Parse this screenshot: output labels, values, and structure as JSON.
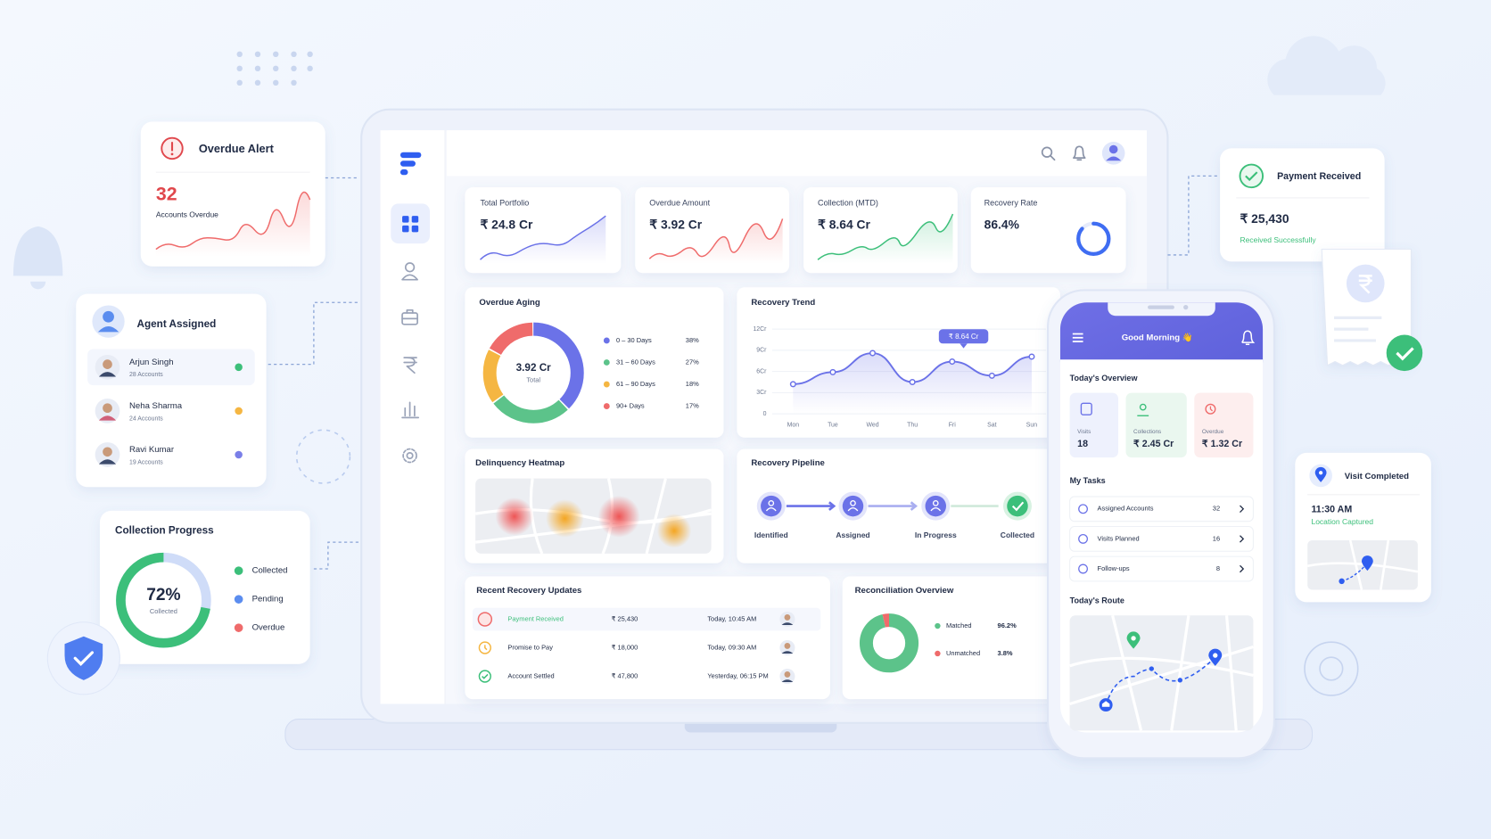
{
  "overdue_alert": {
    "title": "Overdue Alert",
    "count": "32",
    "caption": "Accounts Overdue"
  },
  "agent_assigned": {
    "title": "Agent Assigned",
    "agents": [
      {
        "name": "Arjun Singh",
        "accounts": "28 Accounts",
        "color": "#3cbf7a"
      },
      {
        "name": "Neha Sharma",
        "accounts": "24 Accounts",
        "color": "#f5b642"
      },
      {
        "name": "Ravi Kumar",
        "accounts": "19 Accounts",
        "color": "#7a7fe8"
      }
    ]
  },
  "collection_progress": {
    "title": "Collection Progress",
    "value": 72,
    "value_label": "72%",
    "caption": "Collected",
    "legend": [
      "Collected",
      "Pending",
      "Overdue"
    ],
    "colors": [
      "#3cbf7a",
      "#5b8def",
      "#ef6b6b"
    ]
  },
  "dashboard": {
    "kpis": [
      {
        "label": "Total Portfolio",
        "value": "₹ 24.8 Cr"
      },
      {
        "label": "Overdue Amount",
        "value": "₹ 3.92 Cr"
      },
      {
        "label": "Collection (MTD)",
        "value": "₹ 8.64 Cr"
      },
      {
        "label": "Recovery Rate",
        "value": 86.4,
        "value_label": "86.4%",
        "color": "#3f6df2"
      }
    ],
    "overdue_aging": {
      "title": "Overdue Aging",
      "center_value": "3.92 Cr",
      "center_caption": "Total",
      "categories": [
        "0 – 30 Days",
        "31 – 60 Days",
        "61 – 90 Days",
        "90+ Days"
      ],
      "values": [
        38,
        27,
        18,
        17
      ],
      "value_labels": [
        "38%",
        "27%",
        "18%",
        "17%"
      ],
      "colors": [
        "#6b72e8",
        "#5cc38a",
        "#f5b642",
        "#ef6b6b"
      ]
    },
    "recovery_trend": {
      "title": "Recovery Trend",
      "annotation": "₹ 8.64 Cr",
      "categories": [
        "Mon",
        "Tue",
        "Wed",
        "Thu",
        "Fri",
        "Sat",
        "Sun"
      ],
      "values": [
        4.2,
        5.9,
        8.6,
        4.5,
        7.4,
        5.4,
        8.1
      ],
      "color": "#6b72e8",
      "ylim": [
        0,
        12
      ],
      "yticks": [
        0,
        {
          "value": 3,
          "label": "3Cr"
        },
        {
          "value": 6,
          "label": "6Cr"
        },
        {
          "value": 9,
          "label": "9Cr"
        },
        {
          "value": 12,
          "label": "12Cr"
        }
      ]
    },
    "delinquency_heatmap": {
      "title": "Delinquency Heatmap"
    },
    "recovery_pipeline": {
      "title": "Recovery Pipeline",
      "stages": [
        "Identified",
        "Assigned",
        "In Progress",
        "Collected"
      ]
    },
    "recent_updates": {
      "title": "Recent Recovery Updates",
      "rows": [
        [
          "Payment Received",
          "₹ 25,430",
          "Today, 10:45 AM"
        ],
        [
          "Promise to Pay",
          "₹ 18,000",
          "Today, 09:30 AM"
        ],
        [
          "Account Settled",
          "₹ 47,800",
          "Yesterday, 06:15 PM"
        ]
      ]
    },
    "reconciliation": {
      "title": "Reconciliation Overview",
      "categories": [
        "Matched",
        "Unmatched"
      ],
      "values": [
        96.2,
        3.8
      ],
      "value_labels": [
        "96.2%",
        "3.8%"
      ],
      "colors": [
        "#5cc38a",
        "#ef6b6b"
      ]
    }
  },
  "payment_received": {
    "title": "Payment Received",
    "amount": "₹ 25,430",
    "status": "Received Successfully"
  },
  "mobile": {
    "greeting": "Good Morning 👋",
    "overview_title": "Today's Overview",
    "stats": [
      {
        "label": "Visits",
        "value": "18"
      },
      {
        "label": "Collections",
        "value": "₹ 2.45 Cr"
      },
      {
        "label": "Overdue",
        "value": "₹ 1.32 Cr"
      }
    ],
    "tasks_title": "My Tasks",
    "tasks": [
      {
        "label": "Assigned Accounts",
        "count": "32"
      },
      {
        "label": "Visits Planned",
        "count": "16"
      },
      {
        "label": "Follow-ups",
        "count": "8"
      }
    ],
    "route_title": "Today's Route"
  },
  "visit_completed": {
    "title": "Visit Completed",
    "time": "11:30 AM",
    "status": "Location Captured"
  }
}
